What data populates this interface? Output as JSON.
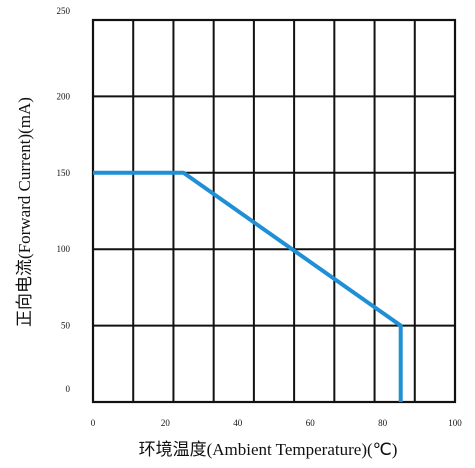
{
  "chart_data": {
    "type": "line",
    "title": "",
    "xlabel": "环境温度(Ambient Temperature)(℃)",
    "ylabel": "正向电流(Forward Current)(mA)",
    "xlim": [
      0,
      100
    ],
    "ylim": [
      0,
      250
    ],
    "x_ticks": [
      "0",
      "20",
      "40",
      "60",
      "80",
      "100"
    ],
    "y_ticks": [
      "0",
      "50",
      "100",
      "150",
      "200",
      "250"
    ],
    "grid": true,
    "series": [
      {
        "color": "#1f8fd6",
        "x": [
          0,
          25,
          85,
          85
        ],
        "y": [
          150,
          150,
          50,
          0
        ]
      }
    ]
  }
}
